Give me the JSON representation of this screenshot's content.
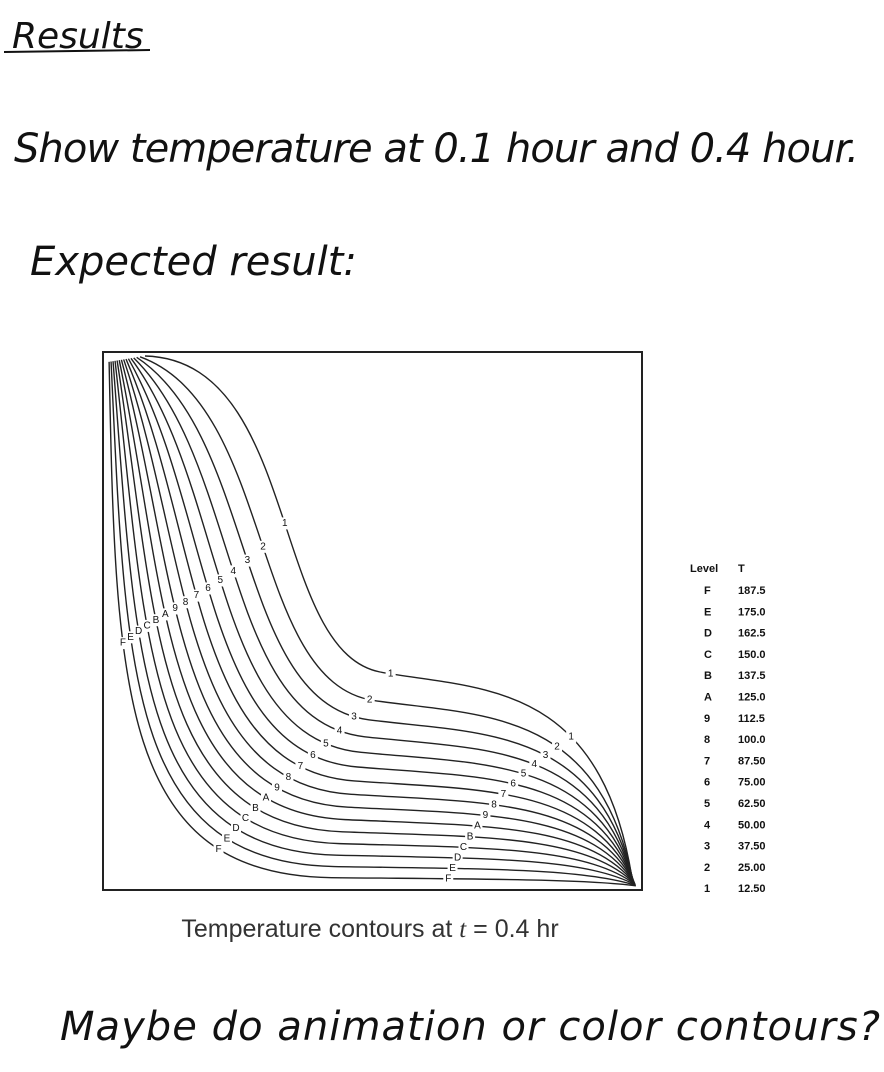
{
  "notes": {
    "title": "Results",
    "line1": "Show temperature at 0.1 hour and 0.4 hour.",
    "line2": "Expected result:",
    "footer": "Maybe do animation or color contours?"
  },
  "figure": {
    "caption": {
      "before": "Temperature contours at ",
      "var": "t",
      "after": " = 0.4 hr"
    },
    "legend": {
      "header": [
        "Level",
        "T"
      ],
      "rows": [
        [
          "F",
          "187.5"
        ],
        [
          "E",
          "175.0"
        ],
        [
          "D",
          "162.5"
        ],
        [
          "C",
          "150.0"
        ],
        [
          "B",
          "137.5"
        ],
        [
          "A",
          "125.0"
        ],
        [
          "9",
          "112.5"
        ],
        [
          "8",
          "100.0"
        ],
        [
          "7",
          "87.50"
        ],
        [
          "6",
          "75.00"
        ],
        [
          "5",
          "62.50"
        ],
        [
          "4",
          "50.00"
        ],
        [
          "3",
          "37.50"
        ],
        [
          "2",
          "25.00"
        ],
        [
          "1",
          "12.50"
        ]
      ]
    }
  }
}
